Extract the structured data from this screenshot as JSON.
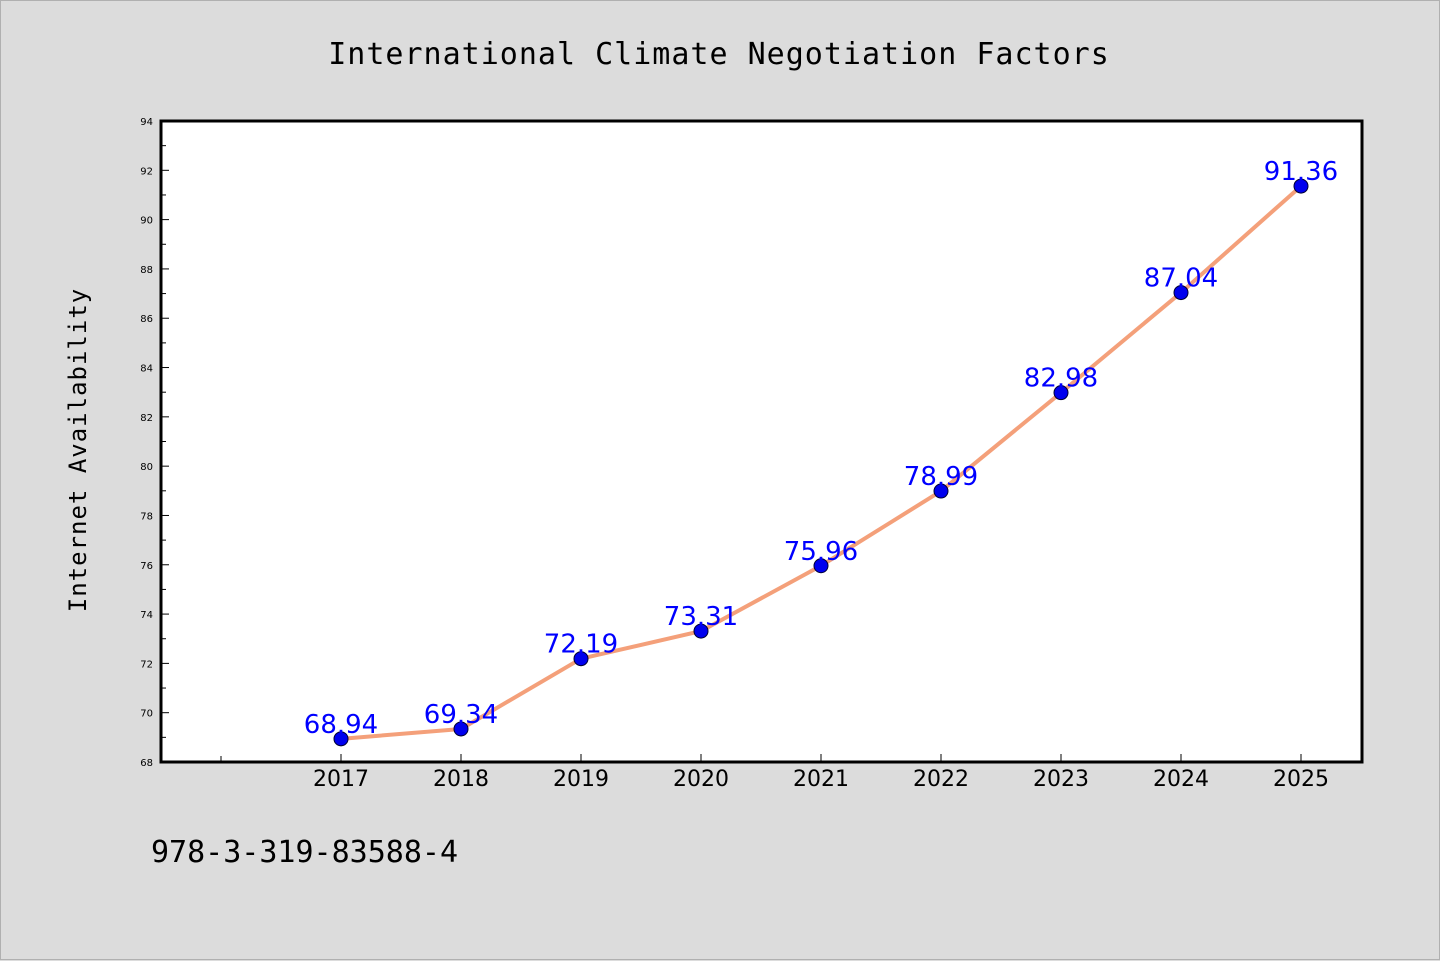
{
  "chart_data": {
    "type": "line",
    "title": "International Climate Negotiation Factors",
    "xlabel": "",
    "ylabel": "Internet Availability",
    "categories": [
      "2017",
      "2018",
      "2019",
      "2020",
      "2021",
      "2022",
      "2023",
      "2024",
      "2025"
    ],
    "series": [
      {
        "values": [
          68.94,
          69.34,
          72.19,
          73.31,
          75.96,
          78.99,
          82.98,
          87.04,
          91.36
        ],
        "data_labels": [
          "68.94",
          "69.34",
          "72.19",
          "73.31",
          "75.96",
          "78.99",
          "82.98",
          "87.04",
          "91.36"
        ],
        "line_color": "#f4a07a",
        "marker_color": "#0000ee",
        "label_color": "#0000ff"
      }
    ],
    "ylim": [
      68,
      94
    ],
    "y_ticks": [
      "68",
      "70",
      "72",
      "74",
      "76",
      "78",
      "80",
      "82",
      "84",
      "86",
      "88",
      "90",
      "92",
      "94"
    ],
    "grid": false,
    "legend": "none",
    "background": "#dcdcdc",
    "plot_background": "#ffffff"
  },
  "footer": {
    "isbn": "978-3-319-83588-4"
  }
}
